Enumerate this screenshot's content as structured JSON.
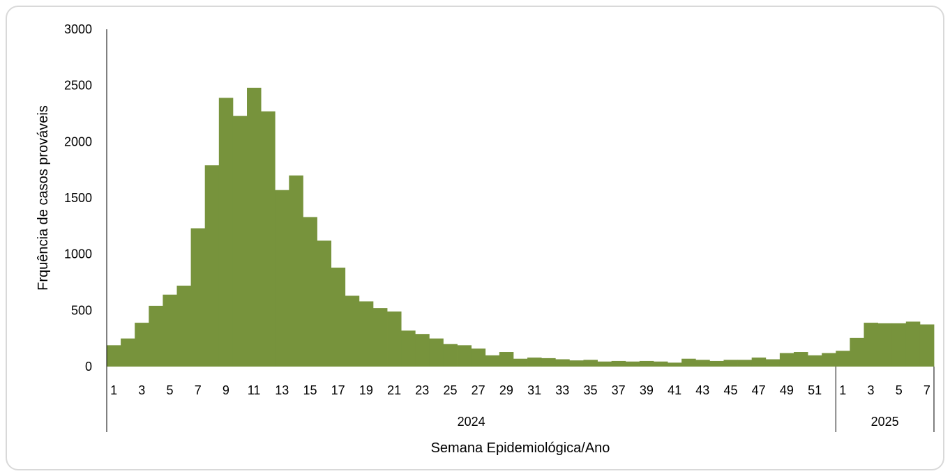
{
  "chart_data": {
    "type": "bar",
    "ylabel": "Frquência de casos prováveis",
    "xlabel": "Semana Epidemiológica/Ano",
    "ylim": [
      0,
      3000
    ],
    "yticks": [
      0,
      500,
      1000,
      1500,
      2000,
      2500,
      3000
    ],
    "bar_color": "#77933c",
    "grid": false,
    "legend": "none",
    "years": [
      {
        "label": "2024",
        "weeks": [
          1,
          2,
          3,
          4,
          5,
          6,
          7,
          8,
          9,
          10,
          11,
          12,
          13,
          14,
          15,
          16,
          17,
          18,
          19,
          20,
          21,
          22,
          23,
          24,
          25,
          26,
          27,
          28,
          29,
          30,
          31,
          32,
          33,
          34,
          35,
          36,
          37,
          38,
          39,
          40,
          41,
          42,
          43,
          44,
          45,
          46,
          47,
          48,
          49,
          50,
          51,
          52
        ],
        "values": [
          190,
          250,
          390,
          540,
          640,
          720,
          1230,
          1790,
          2390,
          2230,
          2480,
          2270,
          1570,
          1700,
          1330,
          1120,
          880,
          630,
          580,
          520,
          490,
          320,
          290,
          250,
          200,
          190,
          160,
          100,
          130,
          70,
          80,
          75,
          65,
          55,
          60,
          45,
          50,
          45,
          50,
          45,
          35,
          70,
          60,
          50,
          60,
          60,
          80,
          65,
          120,
          130,
          100,
          120
        ]
      },
      {
        "label": "2025",
        "weeks": [
          1,
          2,
          3,
          4,
          5,
          6,
          7
        ],
        "values": [
          140,
          255,
          390,
          385,
          385,
          400,
          375
        ]
      }
    ]
  }
}
